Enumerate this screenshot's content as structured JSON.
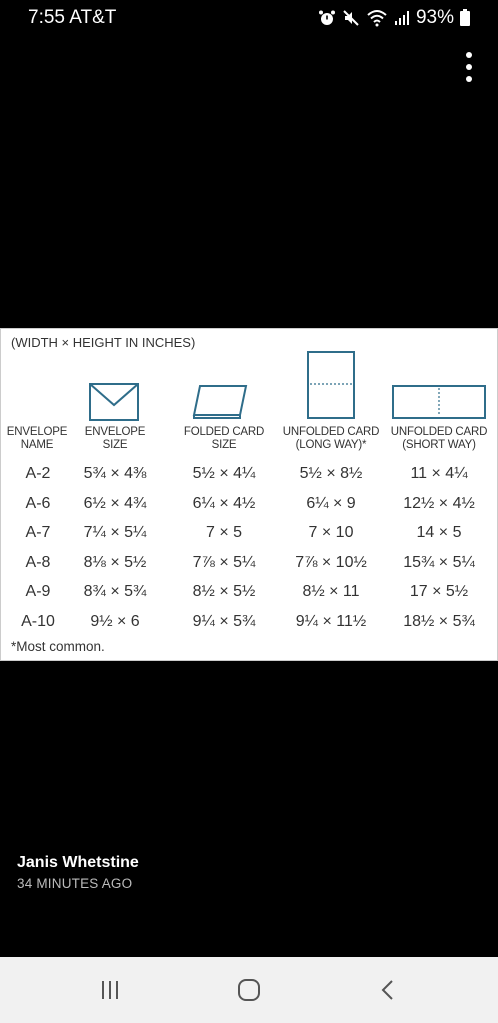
{
  "status_bar": {
    "time": "7:55",
    "carrier": "AT&T",
    "battery": "93%"
  },
  "table": {
    "header_note": "(WIDTH × HEIGHT IN INCHES)",
    "columns": [
      [
        "ENVELOPE",
        "NAME"
      ],
      [
        "ENVELOPE",
        "SIZE"
      ],
      [
        "FOLDED CARD",
        "SIZE"
      ],
      [
        "UNFOLDED CARD",
        "(LONG WAY)*"
      ],
      [
        "UNFOLDED CARD",
        "(SHORT WAY)"
      ]
    ],
    "rows": [
      [
        "A-2",
        "5¾ × 4⅜",
        "5½ × 4¼",
        "5½ × 8½",
        "11 × 4¼"
      ],
      [
        "A-6",
        "6½ × 4¾",
        "6¼ × 4½",
        "6¼ × 9",
        "12½ × 4½"
      ],
      [
        "A-7",
        "7¼ × 5¼",
        "7 × 5",
        "7 × 10",
        "14 × 5"
      ],
      [
        "A-8",
        "8⅛ × 5½",
        "7⅞ × 5¼",
        "7⅞ × 10½",
        "15¾ × 5¼"
      ],
      [
        "A-9",
        "8¾ × 5¾",
        "8½ × 5½",
        "8½ × 11",
        "17 × 5½"
      ],
      [
        "A-10",
        "9½ × 6",
        "9¼ × 5¾",
        "9¼ × 11½",
        "18½ × 5¾"
      ]
    ],
    "footnote": "*Most common."
  },
  "caption": {
    "author": "Janis Whetstine",
    "time_ago": "34 MINUTES AGO"
  },
  "icons": {
    "status": [
      "alarm-icon",
      "mute-icon",
      "wifi-icon",
      "signal-icon",
      "battery-icon"
    ],
    "nav": [
      "recent-apps-icon",
      "home-icon",
      "back-icon"
    ]
  }
}
